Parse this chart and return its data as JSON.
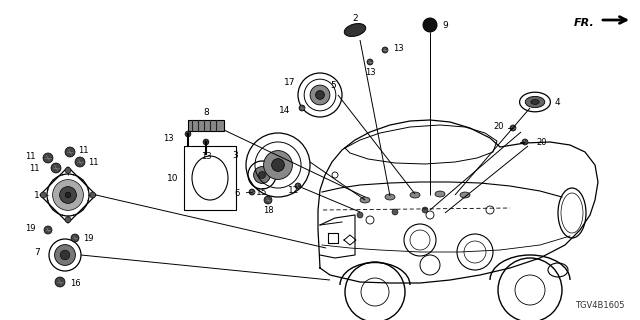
{
  "bg_color": "#ffffff",
  "fig_code": "TGV4B1605",
  "fr_text": "FR.",
  "line_color": "#000000",
  "part_color": "#1a1a1a",
  "gray_dark": "#333333",
  "gray_med": "#666666",
  "gray_light": "#999999"
}
